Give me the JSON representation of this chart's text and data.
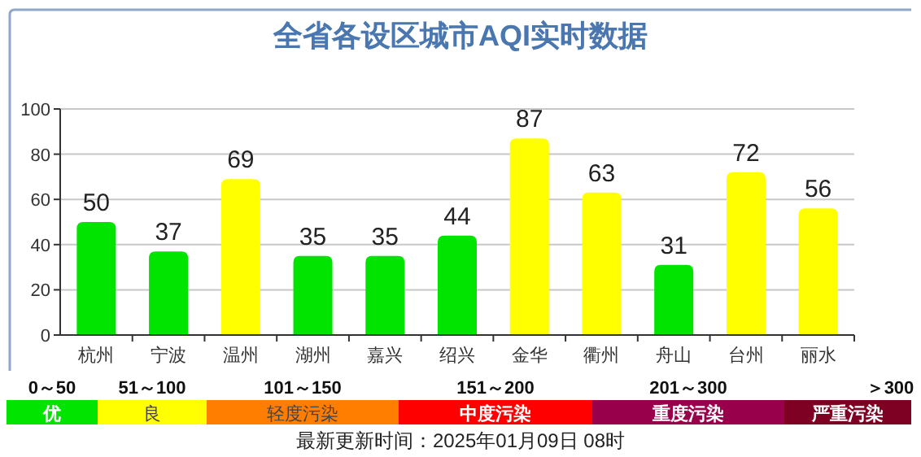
{
  "chart_data": [
    {
      "type": "bar",
      "title": "全省各设区城市AQI实时数据",
      "categories": [
        "杭州",
        "宁波",
        "温州",
        "湖州",
        "嘉兴",
        "绍兴",
        "金华",
        "衢州",
        "舟山",
        "台州",
        "丽水"
      ],
      "values": [
        50,
        37,
        69,
        35,
        35,
        44,
        87,
        63,
        31,
        72,
        56
      ],
      "colors": [
        "#00e400",
        "#00e400",
        "#ffff00",
        "#00e400",
        "#00e400",
        "#00e400",
        "#ffff00",
        "#ffff00",
        "#00e400",
        "#ffff00",
        "#ffff00"
      ],
      "ylim": [
        0,
        100
      ],
      "yticks": [
        0,
        20,
        40,
        60,
        80,
        100
      ],
      "grid": "y",
      "data_labels": true,
      "annotations": [
        "最新更新时间：2025年01月09日 08时"
      ]
    },
    {
      "type": "other",
      "categories": [
        "优",
        "良",
        "轻度污染",
        "中度污染",
        "重度污染",
        "严重污染"
      ],
      "colors": [
        "#00e400",
        "#ffff00",
        "#ff7e00",
        "#ff0000",
        "#99004c",
        "#7e0023"
      ],
      "annotations": [
        "0～50",
        "51～100",
        "101～150",
        "151～200",
        "201～300",
        "＞300"
      ]
    }
  ]
}
